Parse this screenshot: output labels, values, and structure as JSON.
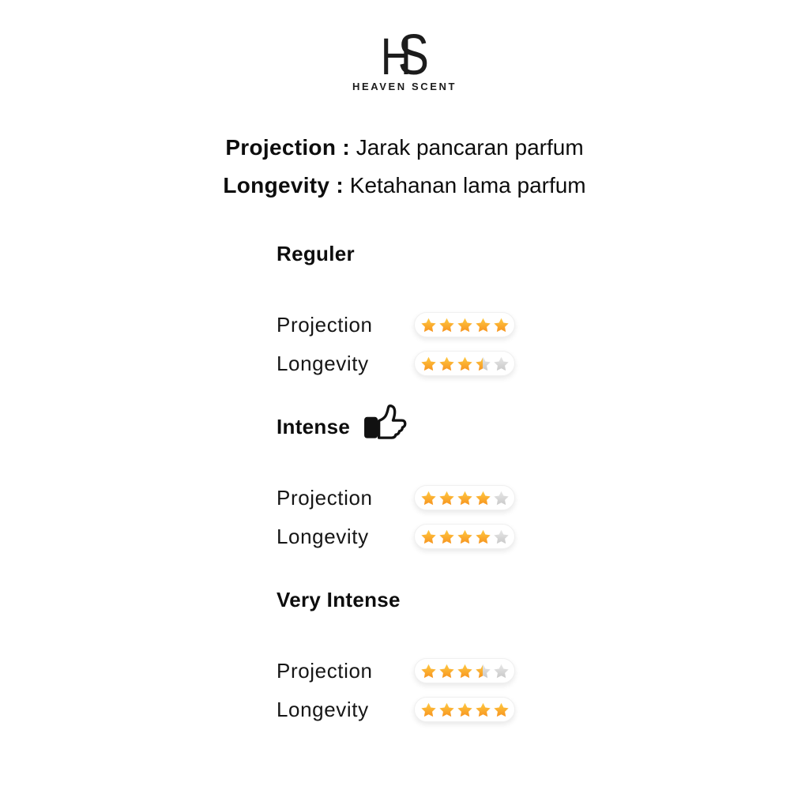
{
  "brand": {
    "monogram_h": "H",
    "monogram_s": "S",
    "name": "HEAVEN SCENT"
  },
  "legend": {
    "line1": {
      "term": "Projection :",
      "definition": "Jarak pancaran parfum"
    },
    "line2": {
      "term": "Longevity :",
      "definition": "Ketahanan lama parfum"
    }
  },
  "sections": [
    {
      "title": "Reguler",
      "icon": null,
      "rows": [
        {
          "label": "Projection",
          "rating": 5,
          "max": 5
        },
        {
          "label": "Longevity",
          "rating": 3.5,
          "max": 5
        }
      ]
    },
    {
      "title": "Intense",
      "icon": "thumbs-up",
      "rows": [
        {
          "label": "Projection",
          "rating": 4,
          "max": 5
        },
        {
          "label": "Longevity",
          "rating": 4,
          "max": 5
        }
      ]
    },
    {
      "title": "Very Intense",
      "icon": null,
      "rows": [
        {
          "label": "Projection",
          "rating": 3.5,
          "max": 5
        },
        {
          "label": "Longevity",
          "rating": 5,
          "max": 5
        }
      ]
    }
  ],
  "colors": {
    "star_full_top": "#FFC942",
    "star_full_bottom": "#F7941E",
    "star_empty_top": "#E7E7E7",
    "star_empty_bottom": "#C9C9C9",
    "text": "#141414",
    "pill_border": "#F0F0F0"
  }
}
